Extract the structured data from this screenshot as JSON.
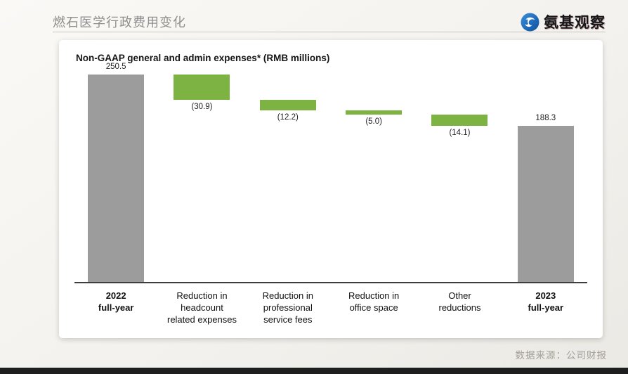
{
  "header": {
    "title": "燃石医学行政费用变化",
    "logo_text": "氨基观察"
  },
  "footer": {
    "source": "数据来源：公司财报"
  },
  "chart_data": {
    "type": "waterfall",
    "title": "Non-GAAP general and admin expenses* (RMB millions)",
    "unit": "RMB millions",
    "ylim": [
      0,
      250.5
    ],
    "bars": [
      {
        "kind": "total",
        "value": 250.5,
        "value_label": "250.5",
        "label_lines": [
          "2022",
          "full-year"
        ],
        "bold": true
      },
      {
        "kind": "delta",
        "value": -30.9,
        "value_label": "(30.9)",
        "label_lines": [
          "Reduction in",
          "headcount",
          "related expenses"
        ],
        "bold": false
      },
      {
        "kind": "delta",
        "value": -12.2,
        "value_label": "(12.2)",
        "label_lines": [
          "Reduction in",
          "professional",
          "service fees"
        ],
        "bold": false
      },
      {
        "kind": "delta",
        "value": -5.0,
        "value_label": "(5.0)",
        "label_lines": [
          "Reduction in",
          "office space"
        ],
        "bold": false
      },
      {
        "kind": "delta",
        "value": -14.1,
        "value_label": "(14.1)",
        "label_lines": [
          "Other",
          "reductions"
        ],
        "bold": false
      },
      {
        "kind": "total",
        "value": 188.3,
        "value_label": "188.3",
        "label_lines": [
          "2023",
          "full-year"
        ],
        "bold": true
      }
    ],
    "colors": {
      "total_bar": "#9c9c9c",
      "delta_bar": "#7cb342",
      "axis_line": "#3d3d3d"
    },
    "legend": null
  }
}
